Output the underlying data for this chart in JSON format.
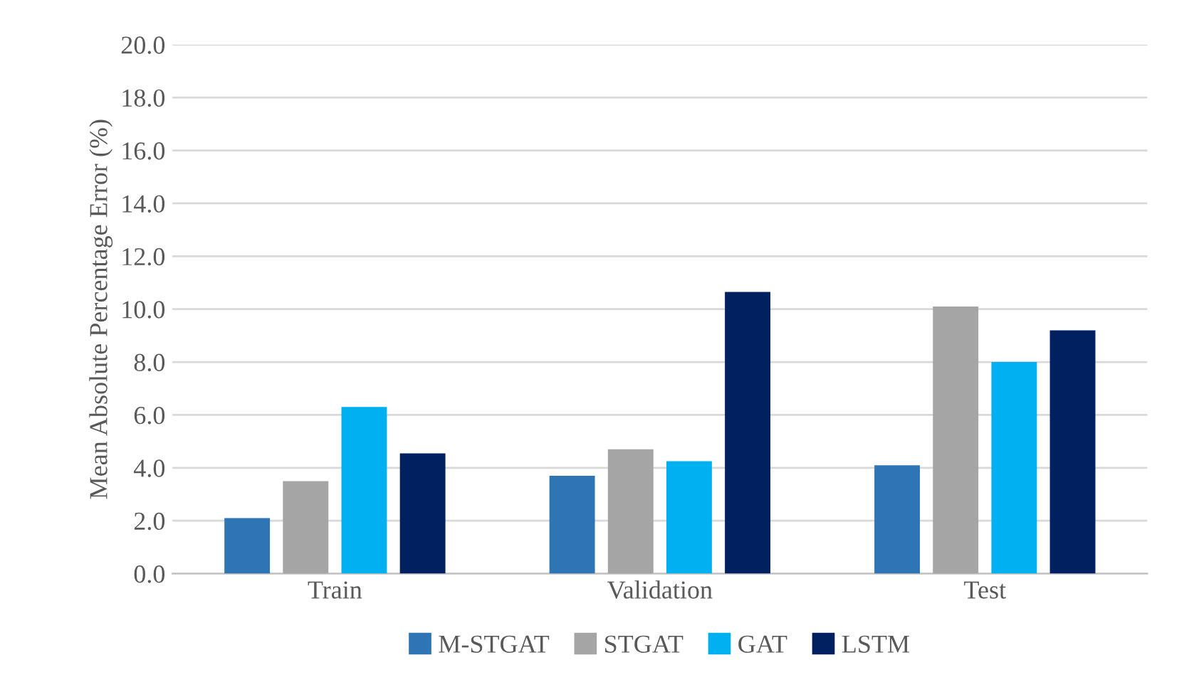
{
  "chart_data": {
    "type": "bar",
    "ylabel": "Mean Absolute Percentage Error (%)",
    "categories": [
      "Train",
      "Validation",
      "Test"
    ],
    "series": [
      {
        "name": "M-STGAT",
        "color": "#2e75b6",
        "values": [
          2.1,
          3.7,
          4.1
        ]
      },
      {
        "name": "STGAT",
        "color": "#a5a5a5",
        "values": [
          3.5,
          4.7,
          10.1
        ]
      },
      {
        "name": "GAT",
        "color": "#00b0f0",
        "values": [
          6.3,
          4.25,
          8.0
        ]
      },
      {
        "name": "LSTM",
        "color": "#002060",
        "values": [
          4.55,
          10.65,
          9.2
        ]
      }
    ],
    "ylim": [
      0,
      20
    ],
    "yticks": [
      {
        "value": 0,
        "label": "0.0"
      },
      {
        "value": 2,
        "label": "2.0"
      },
      {
        "value": 4,
        "label": "4.0"
      },
      {
        "value": 6,
        "label": "6.0"
      },
      {
        "value": 8,
        "label": "8.0"
      },
      {
        "value": 10,
        "label": "10.0"
      },
      {
        "value": 12,
        "label": "12.0"
      },
      {
        "value": 14,
        "label": "14.0"
      },
      {
        "value": 16,
        "label": "16.0"
      },
      {
        "value": 18,
        "label": "18.0"
      },
      {
        "value": 20,
        "label": "20.0"
      }
    ],
    "grid": "y",
    "legend": "bottom"
  }
}
